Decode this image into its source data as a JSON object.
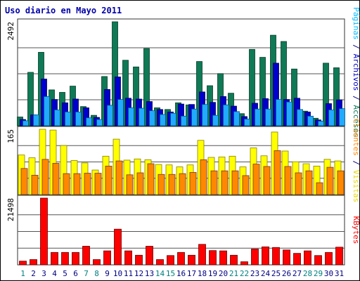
{
  "chart_data": {
    "type": "bar",
    "title": "Uso diario en Mayo 2011",
    "days": [
      "1",
      "2",
      "3",
      "4",
      "5",
      "6",
      "7",
      "8",
      "9",
      "10",
      "11",
      "12",
      "13",
      "14",
      "15",
      "16",
      "17",
      "18",
      "19",
      "20",
      "21",
      "22",
      "23",
      "24",
      "25",
      "26",
      "27",
      "28",
      "29",
      "30",
      "31"
    ],
    "weekend_days": [
      "1",
      "7",
      "8",
      "14",
      "15",
      "21",
      "22",
      "28",
      "29"
    ],
    "panels": [
      {
        "id": "top",
        "ymax_label": "2492",
        "ymax": 2492,
        "right_label_parts": [
          {
            "text": "Páginas",
            "color": "#00bbff"
          },
          {
            "text": " / ",
            "color": "#000080"
          },
          {
            "text": "Archivos",
            "color": "#0000cc"
          },
          {
            "text": " / ",
            "color": "#000080"
          },
          {
            "text": "Accesos",
            "color": "#0f7a55"
          }
        ],
        "series": [
          {
            "name": "Accesos",
            "color": "#0f7a55",
            "values": [
              210,
              1280,
              1760,
              860,
              800,
              950,
              460,
              250,
              1180,
              2492,
              1570,
              1410,
              1850,
              430,
              390,
              550,
              500,
              1540,
              960,
              1250,
              780,
              290,
              1830,
              1640,
              2170,
              2020,
              1360,
              350,
              180,
              1500,
              1390
            ]
          },
          {
            "name": "Archivos",
            "color": "#0000cc",
            "values": [
              150,
              260,
              1120,
              630,
              550,
              640,
              430,
              200,
              870,
              1170,
              660,
              640,
              580,
              390,
              330,
              520,
              510,
              810,
              560,
              700,
              470,
              220,
              540,
              650,
              1500,
              630,
              660,
              330,
              140,
              530,
              620
            ]
          },
          {
            "name": "Páginas",
            "color": "#22aaff",
            "values": [
              120,
              260,
              700,
              380,
              330,
              330,
              190,
              150,
              490,
              630,
              430,
              420,
              360,
              270,
              300,
              230,
              400,
              510,
              250,
              500,
              340,
              160,
              400,
              400,
              630,
              570,
              390,
              230,
              110,
              380,
              410
            ]
          }
        ]
      },
      {
        "id": "middle",
        "ymax_label": "165",
        "ymax": 165,
        "right_label_parts": [
          {
            "text": "Clientes",
            "color": "#ff8800"
          },
          {
            "text": " / ",
            "color": "#000080"
          },
          {
            "text": "Visitas",
            "color": "#e6d800"
          }
        ],
        "series": [
          {
            "name": "Visitas",
            "color": "#ffff00",
            "values": [
              100,
              93,
              165,
              163,
              124,
              86,
              80,
              62,
              97,
              140,
              87,
              90,
              88,
              76,
              75,
              70,
              75,
              137,
              94,
              95,
              97,
              70,
              118,
              98,
              158,
              110,
              83,
              78,
              72,
              89,
              85
            ]
          },
          {
            "name": "Clientes",
            "color": "#ff8800",
            "values": [
              66,
              49,
              89,
              79,
              53,
              53,
              54,
              54,
              72,
              85,
              50,
              55,
              78,
              51,
              51,
              53,
              56,
              88,
              60,
              60,
              60,
              48,
              77,
              71,
              111,
              71,
              55,
              60,
              30,
              69,
              60
            ]
          }
        ]
      },
      {
        "id": "bottom",
        "ymax_label": "21498",
        "ymax": 21498,
        "right_label_parts": [
          {
            "text": "KBytes",
            "color": "#ff0000"
          }
        ],
        "series": [
          {
            "name": "KBytes",
            "color": "#ff0000",
            "values": [
              1200,
              1700,
              21498,
              4000,
              4000,
              4000,
              6000,
              1700,
              4500,
              11500,
              4500,
              3100,
              6000,
              1700,
              3000,
              4000,
              3100,
              6600,
              4600,
              4500,
              3100,
              1000,
              5100,
              5800,
              5600,
              4800,
              3700,
              4500,
              3000,
              4000,
              5700
            ]
          }
        ]
      }
    ]
  }
}
